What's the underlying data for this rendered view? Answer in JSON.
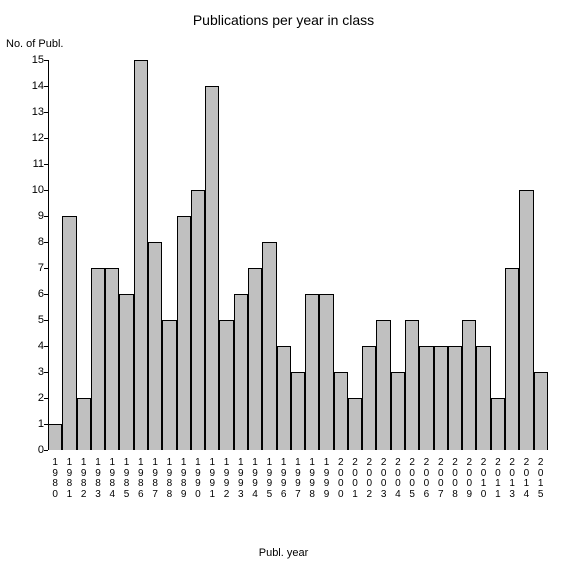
{
  "chart": {
    "type": "bar",
    "title": "Publications per year in class",
    "title_fontsize": 14,
    "ylabel": "No. of Publ.",
    "xlabel": "Publ. year",
    "label_fontsize": 11,
    "background_color": "#ffffff",
    "axis_color": "#000000",
    "bar_color": "#c0c0c0",
    "bar_border_color": "#000000",
    "bar_width": 1.0,
    "ylim": [
      0,
      15
    ],
    "ytick_step": 1,
    "yticks": [
      0,
      1,
      2,
      3,
      4,
      5,
      6,
      7,
      8,
      9,
      10,
      11,
      12,
      13,
      14,
      15
    ],
    "categories": [
      "1980",
      "1981",
      "1982",
      "1983",
      "1984",
      "1985",
      "1986",
      "1987",
      "1988",
      "1989",
      "1990",
      "1991",
      "1992",
      "1993",
      "1994",
      "1995",
      "1996",
      "1997",
      "1998",
      "1999",
      "2000",
      "2001",
      "2002",
      "2003",
      "2004",
      "2005",
      "2006",
      "2007",
      "2008",
      "2009",
      "2010",
      "2011",
      "2013",
      "2014",
      "2015"
    ],
    "values": [
      1,
      9,
      2,
      7,
      7,
      6,
      15,
      8,
      5,
      9,
      10,
      14,
      5,
      6,
      7,
      8,
      4,
      3,
      6,
      6,
      3,
      2,
      4,
      5,
      3,
      5,
      4,
      4,
      4,
      5,
      4,
      2,
      7,
      10,
      3
    ],
    "tick_fontsize": 11,
    "xtick_fontsize": 10
  }
}
